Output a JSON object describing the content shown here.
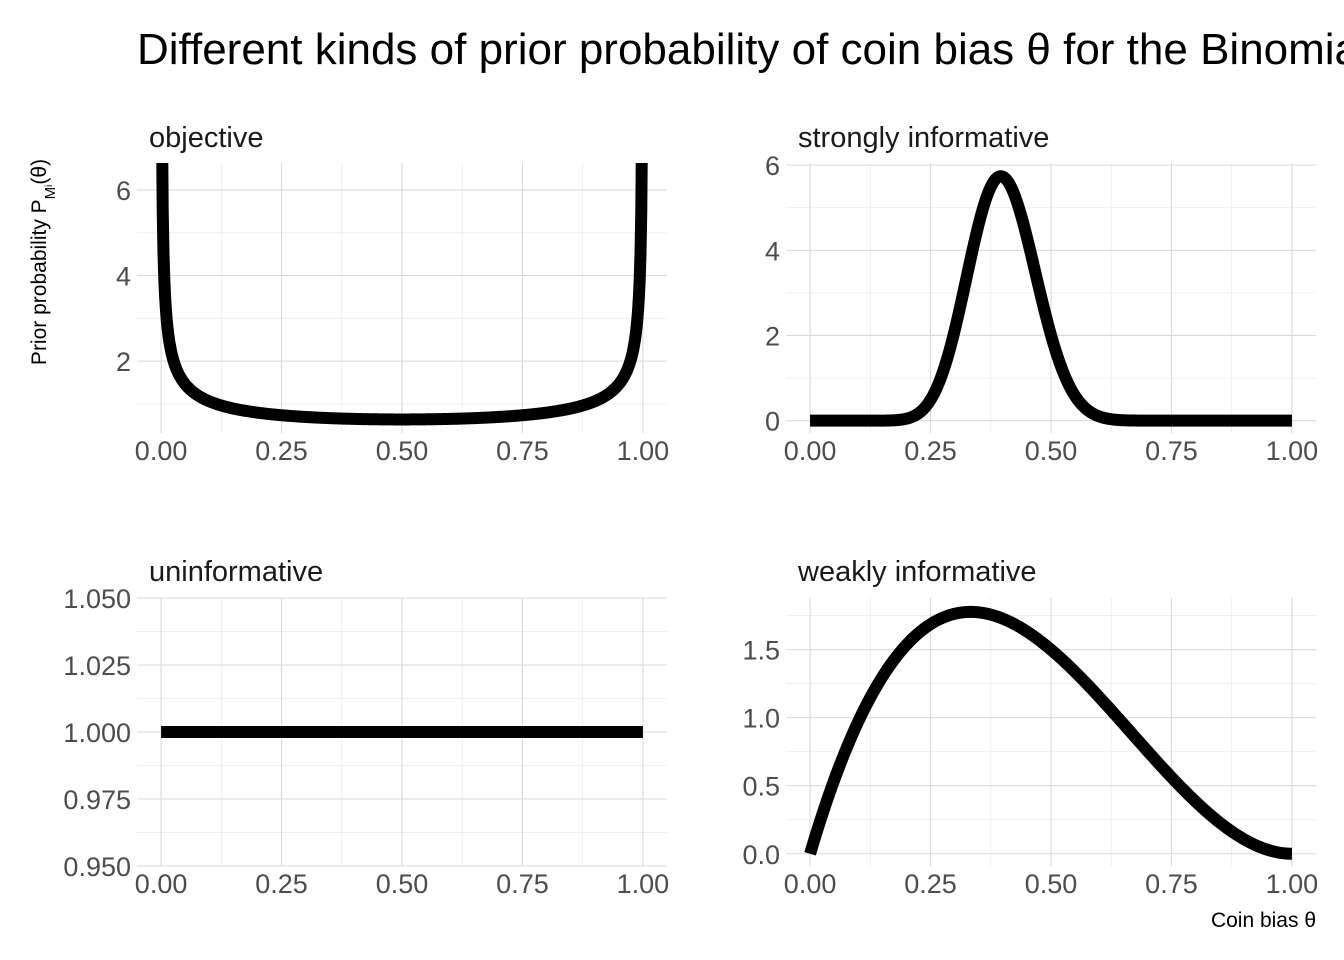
{
  "chart_data": {
    "title": "Different kinds of prior probability of coin bias θ for the Binomial Model",
    "ylabel_prefix": "Prior probability P",
    "ylabel_sub": "M",
    "ylabel_subsub": "i",
    "ylabel_suffix": "(θ)",
    "xlabel": "Coin bias θ",
    "panels": [
      {
        "label": "objective",
        "type": "line",
        "distribution": {
          "family": "beta",
          "a": 0.5,
          "b": 0.5
        },
        "x": [
          0.0,
          1.0
        ],
        "xticks": [
          "0.00",
          "0.25",
          "0.50",
          "0.75",
          "1.00"
        ],
        "yticks": [
          "2",
          "4",
          "6"
        ],
        "ytick_values": [
          2,
          4,
          6
        ],
        "ylim": [
          0.32,
          6.63
        ]
      },
      {
        "label": "strongly informative",
        "type": "line",
        "distribution": {
          "family": "beta",
          "a": 20,
          "b": 30
        },
        "x": [
          0.0,
          1.0
        ],
        "xticks": [
          "0.00",
          "0.25",
          "0.50",
          "0.75",
          "1.00"
        ],
        "yticks": [
          "0",
          "2",
          "4",
          "6"
        ],
        "ytick_values": [
          0,
          2,
          4,
          6
        ],
        "ylim": [
          -0.29,
          6.05
        ]
      },
      {
        "label": "uninformative",
        "type": "line",
        "distribution": {
          "family": "beta",
          "a": 1,
          "b": 1
        },
        "x": [
          0.0,
          1.0
        ],
        "xticks": [
          "0.00",
          "0.25",
          "0.50",
          "0.75",
          "1.00"
        ],
        "yticks": [
          "0.950",
          "0.975",
          "1.000",
          "1.025",
          "1.050"
        ],
        "ytick_values": [
          0.95,
          0.975,
          1.0,
          1.025,
          1.05
        ],
        "ylim": [
          0.95,
          1.05
        ]
      },
      {
        "label": "weakly informative",
        "type": "line",
        "distribution": {
          "family": "beta",
          "a": 2,
          "b": 3
        },
        "x": [
          0.0,
          1.0
        ],
        "xticks": [
          "0.00",
          "0.25",
          "0.50",
          "0.75",
          "1.00"
        ],
        "yticks": [
          "0.0",
          "0.5",
          "1.0",
          "1.5"
        ],
        "ytick_values": [
          0,
          0.5,
          1.0,
          1.5
        ],
        "ylim": [
          -0.09,
          1.88
        ]
      }
    ]
  }
}
